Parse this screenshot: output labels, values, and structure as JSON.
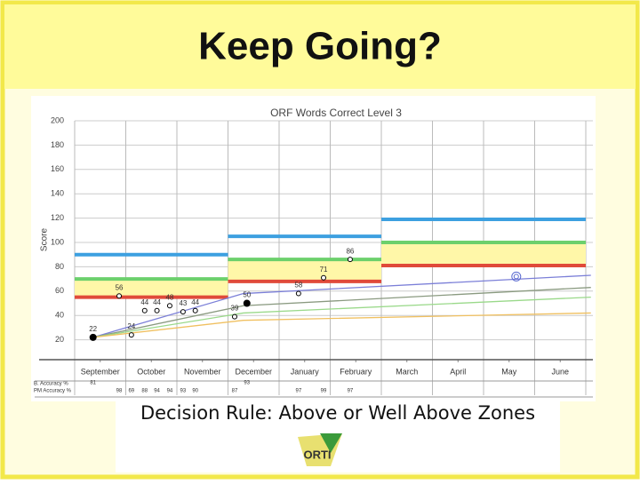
{
  "slide": {
    "title": "Keep Going?",
    "caption": "Decision Rule: Above or Well Above Zones",
    "logo_text": "ORTI"
  },
  "chart_data": {
    "type": "scatter",
    "title": "ORF Words Correct Level 3",
    "y_label": "Score",
    "xlim": [
      -0.5,
      9.5
    ],
    "xticks": [
      {
        "value": 0,
        "label": "September"
      },
      {
        "value": 1,
        "label": "October"
      },
      {
        "value": 2,
        "label": "November"
      },
      {
        "value": 3,
        "label": "December"
      },
      {
        "value": 4,
        "label": "January"
      },
      {
        "value": 5,
        "label": "February"
      },
      {
        "value": 6,
        "label": "March"
      },
      {
        "value": 7,
        "label": "April"
      },
      {
        "value": 8,
        "label": "May"
      },
      {
        "value": 9,
        "label": "June"
      }
    ],
    "ylim": [
      0,
      200
    ],
    "yticks": [
      20,
      40,
      60,
      80,
      100,
      120,
      140,
      160,
      180,
      200
    ],
    "grid": true,
    "x": [
      -0.14,
      0.61,
      0.37,
      0.87,
      1.11,
      1.36,
      1.62,
      1.86,
      2.63,
      2.87,
      3.88,
      4.37,
      4.89,
      8.14
    ],
    "values": [
      22,
      24,
      56,
      44,
      44,
      48,
      43,
      44,
      39,
      50,
      58,
      71,
      86,
      72
    ],
    "zones": [
      {
        "from": -0.5,
        "to": 2.5,
        "blue": 90,
        "green": 70,
        "red": 55
      },
      {
        "from": 2.5,
        "to": 5.5,
        "blue": 105,
        "green": 86,
        "red": 68
      },
      {
        "from": 5.5,
        "to": 9.5,
        "blue": 119,
        "green": 100,
        "red": 81
      }
    ],
    "trend_lines": [
      {
        "color": "#7b7fd8",
        "x": [
          -0.14,
          2.8,
          9.6
        ],
        "values": [
          22,
          58,
          73
        ]
      },
      {
        "color": "#8a9a80",
        "x": [
          -0.14,
          2.8,
          9.6
        ],
        "values": [
          22,
          48,
          63
        ]
      },
      {
        "color": "#9ad98a",
        "x": [
          -0.14,
          2.8,
          9.6
        ],
        "values": [
          22,
          42,
          55
        ]
      },
      {
        "color": "#f0c060",
        "x": [
          -0.14,
          2.8,
          9.6
        ],
        "values": [
          22,
          36,
          42
        ]
      }
    ],
    "b_accuracy": {
      "label": "B. Accuracy %",
      "x": [
        -0.14,
        2.87
      ],
      "values": [
        81,
        93
      ]
    },
    "pm_accuracy": {
      "label": "PM Accuracy %",
      "x": [
        0.37,
        0.61,
        0.87,
        1.11,
        1.36,
        1.62,
        1.86,
        2.63,
        3.88,
        4.37,
        4.89
      ],
      "values": [
        98,
        69,
        88,
        94,
        94,
        93,
        90,
        87,
        97,
        99,
        97
      ]
    }
  }
}
